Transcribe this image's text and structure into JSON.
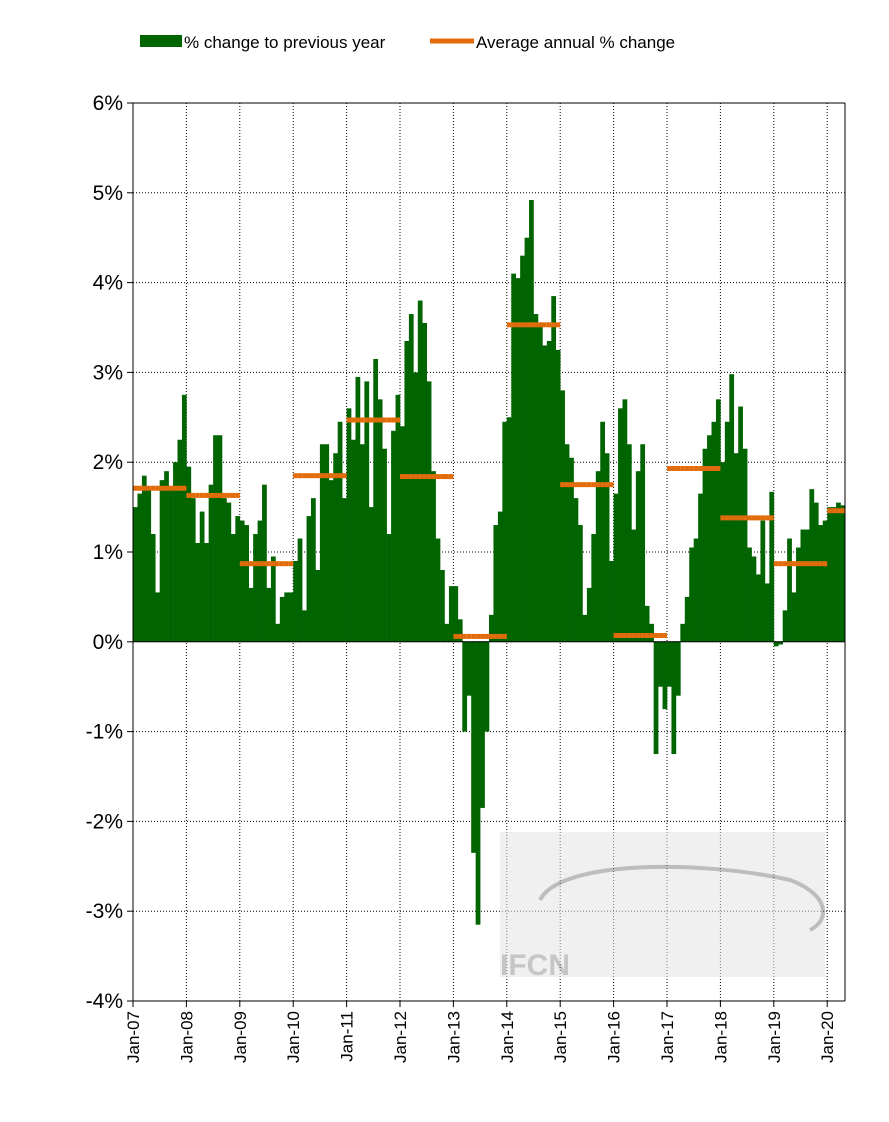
{
  "chart_data": {
    "type": "bar",
    "categories": [
      "Jan-07",
      null,
      null,
      null,
      null,
      null,
      null,
      null,
      null,
      null,
      null,
      null,
      "Jan-08",
      null,
      null,
      null,
      null,
      null,
      null,
      null,
      null,
      null,
      null,
      null,
      "Jan-09",
      null,
      null,
      null,
      null,
      null,
      null,
      null,
      null,
      null,
      null,
      null,
      "Jan-10",
      null,
      null,
      null,
      null,
      null,
      null,
      null,
      null,
      null,
      null,
      null,
      "Jan-11",
      null,
      null,
      null,
      null,
      null,
      null,
      null,
      null,
      null,
      null,
      null,
      "Jan-12",
      null,
      null,
      null,
      null,
      null,
      null,
      null,
      null,
      null,
      null,
      null,
      "Jan-13",
      null,
      null,
      null,
      null,
      null,
      null,
      null,
      null,
      null,
      null,
      null,
      "Jan-14",
      null,
      null,
      null,
      null,
      null,
      null,
      null,
      null,
      null,
      null,
      null,
      "Jan-15",
      null,
      null,
      null,
      null,
      null,
      null,
      null,
      null,
      null,
      null,
      null,
      "Jan-16",
      null,
      null,
      null,
      null,
      null,
      null,
      null,
      null,
      null,
      null,
      null,
      "Jan-17",
      null,
      null,
      null,
      null,
      null,
      null,
      null,
      null,
      null,
      null,
      null,
      "Jan-18",
      null,
      null,
      null,
      null,
      null,
      null,
      null,
      null,
      null,
      null,
      null,
      "Jan-19",
      null,
      null,
      null,
      null,
      null,
      null,
      null,
      null,
      null,
      null,
      null,
      "Jan-20",
      null,
      null,
      null
    ],
    "series": [
      {
        "name": "% change to previous year",
        "color": "#006400",
        "values": [
          1.5,
          1.65,
          1.85,
          1.7,
          1.2,
          0.55,
          1.8,
          1.9,
          1.7,
          2.0,
          2.25,
          2.75,
          1.95,
          1.6,
          1.1,
          1.45,
          1.1,
          1.75,
          2.3,
          2.3,
          1.6,
          1.55,
          1.2,
          1.4,
          1.35,
          1.3,
          0.6,
          1.2,
          1.35,
          1.75,
          0.6,
          0.95,
          0.2,
          0.5,
          0.55,
          0.55,
          0.9,
          1.15,
          0.35,
          1.4,
          1.6,
          0.8,
          2.2,
          2.2,
          1.8,
          2.1,
          2.45,
          1.6,
          2.6,
          2.25,
          2.95,
          2.2,
          2.9,
          1.5,
          3.15,
          2.7,
          2.15,
          1.2,
          2.35,
          2.75,
          2.4,
          3.35,
          3.65,
          3.0,
          3.8,
          3.55,
          2.9,
          1.9,
          1.15,
          0.8,
          0.2,
          0.62,
          0.62,
          0.25,
          -1.0,
          -0.6,
          -2.35,
          -3.15,
          -1.85,
          -1.0,
          0.3,
          1.3,
          1.45,
          2.45,
          2.5,
          4.1,
          4.05,
          4.3,
          4.5,
          4.92,
          3.65,
          3.55,
          3.3,
          3.35,
          3.85,
          3.25,
          2.8,
          2.2,
          2.05,
          1.6,
          1.3,
          0.3,
          0.6,
          1.2,
          1.9,
          2.45,
          2.1,
          0.9,
          1.65,
          2.6,
          2.7,
          2.2,
          1.25,
          1.9,
          2.2,
          0.4,
          0.2,
          -1.25,
          -0.5,
          -0.75,
          -0.5,
          -1.25,
          -0.6,
          0.2,
          0.5,
          1.05,
          1.15,
          1.65,
          2.15,
          2.3,
          2.45,
          2.7,
          2.0,
          2.45,
          2.98,
          2.1,
          2.62,
          2.15,
          1.05,
          0.95,
          0.75,
          1.35,
          0.65,
          1.67,
          -0.05,
          -0.03,
          0.35,
          1.15,
          0.55,
          1.05,
          1.25,
          1.25,
          1.7,
          1.55,
          1.3,
          1.35,
          1.5,
          1.5,
          1.55,
          1.52
        ]
      },
      {
        "name": "Average annual % change",
        "color": "#e36c0a",
        "values": [
          1.71,
          1.71,
          1.71,
          1.71,
          1.71,
          1.71,
          1.71,
          1.71,
          1.71,
          1.71,
          1.71,
          1.71,
          1.63,
          1.63,
          1.63,
          1.63,
          1.63,
          1.63,
          1.63,
          1.63,
          1.63,
          1.63,
          1.63,
          1.63,
          0.87,
          0.87,
          0.87,
          0.87,
          0.87,
          0.87,
          0.87,
          0.87,
          0.87,
          0.87,
          0.87,
          0.87,
          1.85,
          1.85,
          1.85,
          1.85,
          1.85,
          1.85,
          1.85,
          1.85,
          1.85,
          1.85,
          1.85,
          1.85,
          2.47,
          2.47,
          2.47,
          2.47,
          2.47,
          2.47,
          2.47,
          2.47,
          2.47,
          2.47,
          2.47,
          2.47,
          1.84,
          1.84,
          1.84,
          1.84,
          1.84,
          1.84,
          1.84,
          1.84,
          1.84,
          1.84,
          1.84,
          1.84,
          0.06,
          0.06,
          0.06,
          0.06,
          0.06,
          0.06,
          0.06,
          0.06,
          0.06,
          0.06,
          0.06,
          0.06,
          3.53,
          3.53,
          3.53,
          3.53,
          3.53,
          3.53,
          3.53,
          3.53,
          3.53,
          3.53,
          3.53,
          3.53,
          1.75,
          1.75,
          1.75,
          1.75,
          1.75,
          1.75,
          1.75,
          1.75,
          1.75,
          1.75,
          1.75,
          1.75,
          0.07,
          0.07,
          0.07,
          0.07,
          0.07,
          0.07,
          0.07,
          0.07,
          0.07,
          0.07,
          0.07,
          0.07,
          1.93,
          1.93,
          1.93,
          1.93,
          1.93,
          1.93,
          1.93,
          1.93,
          1.93,
          1.93,
          1.93,
          1.93,
          1.38,
          1.38,
          1.38,
          1.38,
          1.38,
          1.38,
          1.38,
          1.38,
          1.38,
          1.38,
          1.38,
          1.38,
          0.87,
          0.87,
          0.87,
          0.87,
          0.87,
          0.87,
          0.87,
          0.87,
          0.87,
          0.87,
          0.87,
          0.87,
          1.46,
          1.46,
          1.46,
          1.46
        ]
      }
    ],
    "ylim": [
      -4,
      6
    ],
    "yticks": [
      {
        "value": -4,
        "label": "-4%"
      },
      {
        "value": -3,
        "label": "-3%"
      },
      {
        "value": -2,
        "label": "-2%"
      },
      {
        "value": -1,
        "label": "-1%"
      },
      {
        "value": 0,
        "label": "0%"
      },
      {
        "value": 1,
        "label": "1%"
      },
      {
        "value": 2,
        "label": "2%"
      },
      {
        "value": 3,
        "label": "3%"
      },
      {
        "value": 4,
        "label": "4%"
      },
      {
        "value": 5,
        "label": "5%"
      },
      {
        "value": 6,
        "label": "6%"
      }
    ],
    "grid": true,
    "legend": "top",
    "watermark": "IFCN"
  }
}
